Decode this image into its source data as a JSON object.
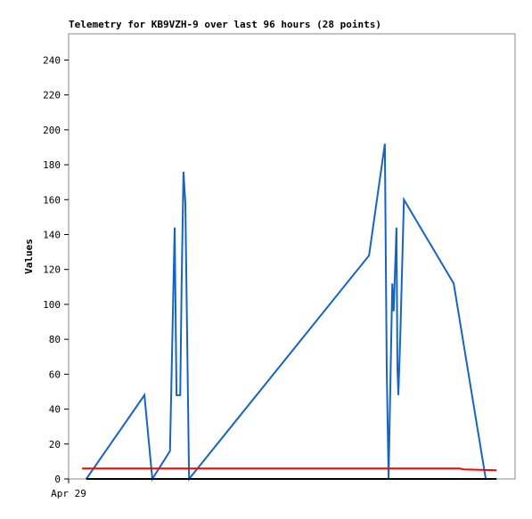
{
  "chart_data": {
    "type": "line",
    "title": "Telemetry for KB9VZH-9 over last 96 hours (28 points)",
    "ylabel": "Values",
    "xlim": [
      0,
      96
    ],
    "xticks": [
      {
        "value": 0,
        "label": "Apr 29"
      }
    ],
    "ylim": [
      0,
      255
    ],
    "yticks": [
      0,
      20,
      40,
      60,
      80,
      100,
      120,
      140,
      160,
      180,
      200,
      220,
      240
    ],
    "grid": false,
    "series": [
      {
        "color": "#1565c0",
        "x": [
          3.8,
          16.3,
          18.0,
          21.8,
          22.8,
          23.2,
          24.0,
          24.3,
          24.7,
          25.1,
          25.9,
          64.6,
          68.0,
          68.4,
          68.8,
          69.6,
          69.9,
          70.5,
          70.7,
          70.9,
          71.3,
          72.1,
          82.8,
          89.7
        ],
        "values": [
          0,
          48,
          0,
          16,
          144,
          48,
          48,
          112,
          176,
          158,
          0,
          128,
          192,
          64,
          0,
          112,
          96,
          144,
          64,
          48,
          80,
          160,
          112,
          0
        ]
      },
      {
        "color": "#ff0000",
        "x": [
          2.9,
          84.1,
          84.9,
          92.0
        ],
        "values": [
          6,
          6,
          5.5,
          5
        ]
      },
      {
        "color": "#000000",
        "x": [
          3.8,
          92.0
        ],
        "values": [
          0,
          0
        ]
      }
    ]
  }
}
